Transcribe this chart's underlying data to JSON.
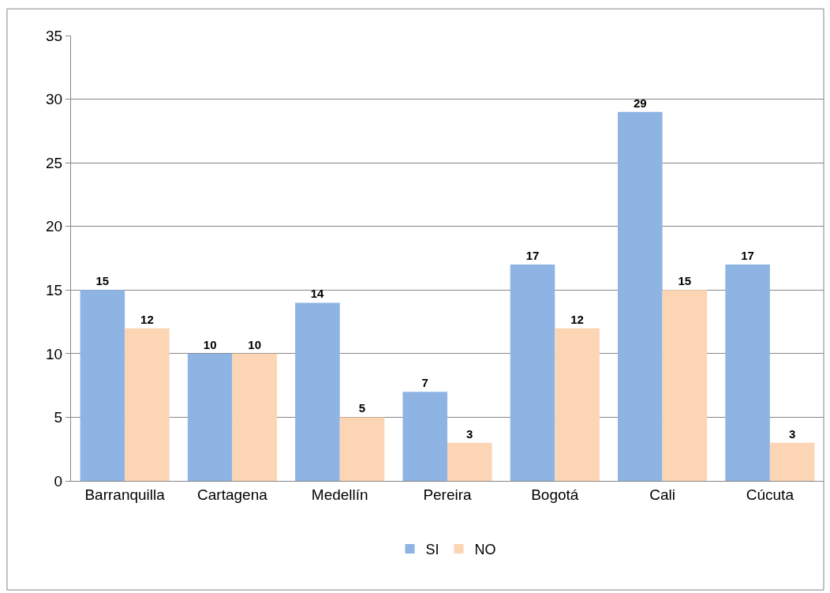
{
  "chart_data": {
    "type": "bar",
    "categories": [
      "Barranquilla",
      "Cartagena",
      "Medellín",
      "Pereira",
      "Bogotá",
      "Cali",
      "Cúcuta"
    ],
    "series": [
      {
        "name": "SI",
        "color": "#8eb4e3",
        "values": [
          15,
          10,
          14,
          7,
          17,
          29,
          17
        ]
      },
      {
        "name": "NO",
        "color": "#fcd5b5",
        "values": [
          12,
          10,
          5,
          3,
          12,
          15,
          3
        ]
      }
    ],
    "ylim": [
      0,
      35
    ],
    "yticks": [
      0,
      5,
      10,
      15,
      20,
      25,
      30,
      35
    ],
    "grid": "y",
    "legend": "bottom",
    "data_labels": true
  }
}
